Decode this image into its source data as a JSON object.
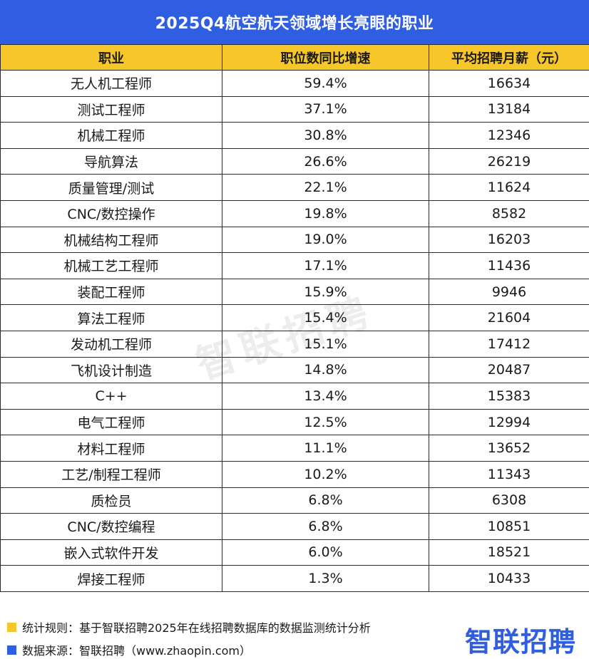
{
  "title": "2025Q4航空航天领域增长亮眼的职业",
  "chart_data": {
    "type": "table",
    "columns": [
      "职业",
      "职位数同比增速",
      "平均招聘月薪（元）"
    ],
    "rows": [
      [
        "无人机工程师",
        "59.4%",
        "16634"
      ],
      [
        "测试工程师",
        "37.1%",
        "13184"
      ],
      [
        "机械工程师",
        "30.8%",
        "12346"
      ],
      [
        "导航算法",
        "26.6%",
        "26219"
      ],
      [
        "质量管理/测试",
        "22.1%",
        "11624"
      ],
      [
        "CNC/数控操作",
        "19.8%",
        "8582"
      ],
      [
        "机械结构工程师",
        "19.0%",
        "16203"
      ],
      [
        "机械工艺工程师",
        "17.1%",
        "11436"
      ],
      [
        "装配工程师",
        "15.9%",
        "9946"
      ],
      [
        "算法工程师",
        "15.4%",
        "21604"
      ],
      [
        "发动机工程师",
        "15.1%",
        "17412"
      ],
      [
        "飞机设计制造",
        "14.8%",
        "20487"
      ],
      [
        "C++",
        "13.4%",
        "15383"
      ],
      [
        "电气工程师",
        "12.5%",
        "12994"
      ],
      [
        "材料工程师",
        "11.1%",
        "13652"
      ],
      [
        "工艺/制程工程师",
        "10.2%",
        "11343"
      ],
      [
        "质检员",
        "6.8%",
        "6308"
      ],
      [
        "CNC/数控编程",
        "6.8%",
        "10851"
      ],
      [
        "嵌入式软件开发",
        "6.0%",
        "18521"
      ],
      [
        "焊接工程师",
        "1.3%",
        "10433"
      ]
    ]
  },
  "watermark": "智联招聘",
  "footer": {
    "note1": "统计规则：基于智联招聘2025年在线招聘数据库的数据监测统计分析",
    "note2": "数据来源：智联招聘（www.zhaopin.com）",
    "brand": "智联招聘"
  },
  "colors": {
    "title_bg": "#2f5fe0",
    "header_bg": "#f6c62a",
    "note1_square": "#f6c62a",
    "note2_square": "#2f5fe0"
  }
}
